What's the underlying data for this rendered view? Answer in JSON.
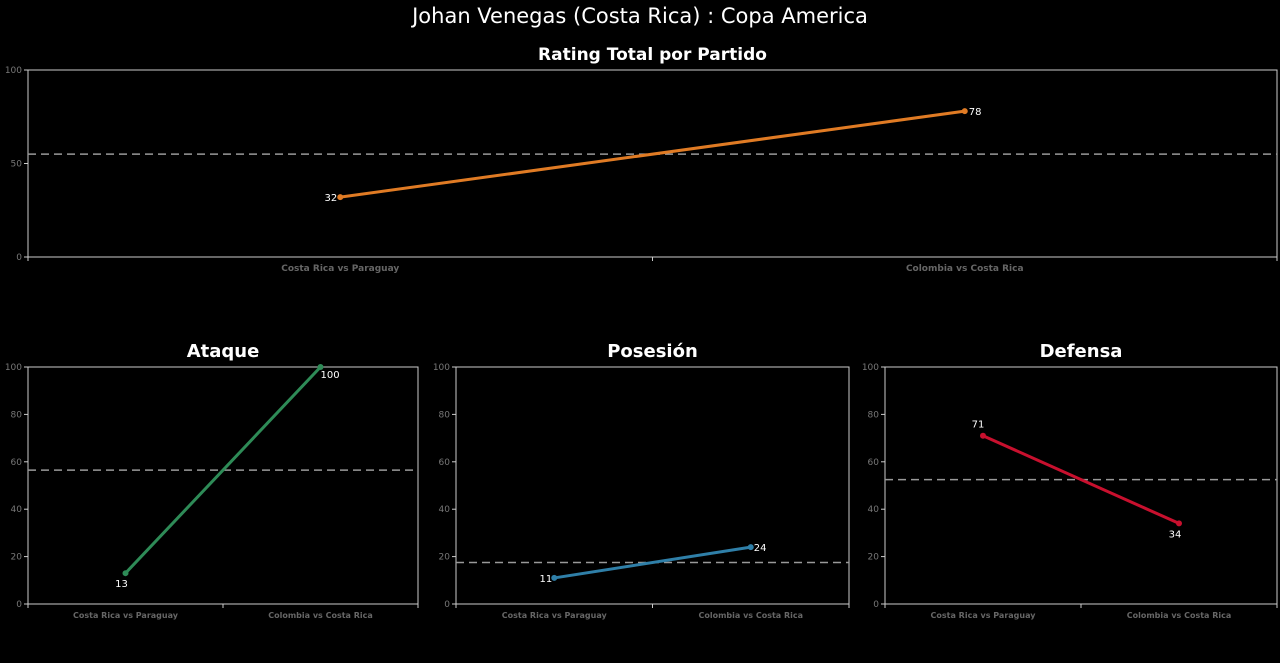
{
  "title": "Johan Venegas (Costa  Rica) :  Copa  America",
  "chart_data": [
    {
      "type": "line",
      "title": "Rating Total por Partido",
      "categories": [
        "Costa Rica vs Paraguay",
        "Colombia vs Costa Rica"
      ],
      "values": [
        32,
        78
      ],
      "average": 55,
      "ylim": [
        0,
        100
      ],
      "yticks": [
        0,
        50,
        100
      ],
      "color": "#e07b24",
      "grid": false
    },
    {
      "type": "line",
      "title": "Ataque",
      "categories": [
        "Costa Rica vs Paraguay",
        "Colombia vs Costa Rica"
      ],
      "values": [
        13,
        100
      ],
      "average": 56.5,
      "ylim": [
        0,
        100
      ],
      "yticks": [
        0,
        20,
        40,
        60,
        80,
        100
      ],
      "color": "#2e8b57",
      "grid": false
    },
    {
      "type": "line",
      "title": "Posesión",
      "categories": [
        "Costa Rica vs Paraguay",
        "Colombia vs Costa Rica"
      ],
      "values": [
        11,
        24
      ],
      "average": 17.5,
      "ylim": [
        0,
        100
      ],
      "yticks": [
        0,
        20,
        40,
        60,
        80,
        100
      ],
      "color": "#2f7fa8",
      "grid": false
    },
    {
      "type": "line",
      "title": "Defensa",
      "categories": [
        "Costa Rica vs Paraguay",
        "Colombia vs Costa Rica"
      ],
      "values": [
        71,
        34
      ],
      "average": 52.5,
      "ylim": [
        0,
        100
      ],
      "yticks": [
        0,
        20,
        40,
        60,
        80,
        100
      ],
      "color": "#c8102e",
      "grid": false
    }
  ]
}
